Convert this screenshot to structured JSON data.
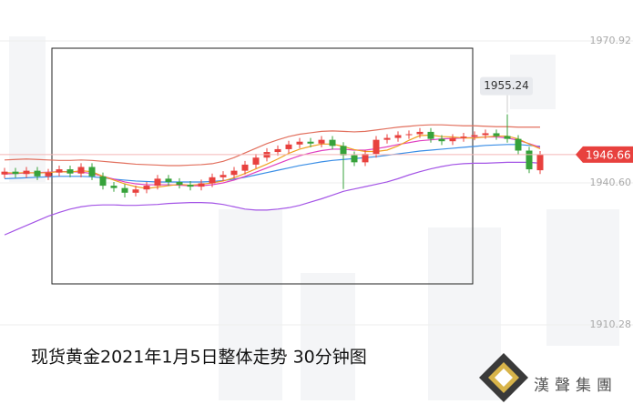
{
  "chart_data": {
    "type": "candlestick",
    "title": "现货黄金2021年1月5日整体走势  30分钟图",
    "brand": "漢聲集團",
    "ylim": [
      1893.38,
      1979.66
    ],
    "yticks": [
      1970.92,
      {
        "value": 1940.6,
        "label": "1940.60"
      },
      1910.28
    ],
    "grid": true,
    "up_color": "#e8413e",
    "down_color": "#36a23a",
    "open": [
      1942.4,
      1943.0,
      1942.5,
      1943.2,
      1942.0,
      1942.8,
      1943.5,
      1942.6,
      1944.0,
      1942.0,
      1940.0,
      1939.5,
      1938.5,
      1939.2,
      1940.0,
      1941.5,
      1940.8,
      1940.2,
      1939.8,
      1940.5,
      1941.8,
      1942.3,
      1943.2,
      1944.5,
      1946.0,
      1947.2,
      1947.8,
      1948.8,
      1949.4,
      1949.0,
      1949.8,
      1948.5,
      1946.5,
      1945.0,
      1946.8,
      1949.8,
      1950.2,
      1950.8,
      1951.0,
      1951.5,
      1950.0,
      1949.5,
      1950.2,
      1950.5,
      1950.8,
      1951.2,
      1950.6,
      1950.0,
      1947.5,
      1943.3
    ],
    "high": [
      1943.8,
      1943.8,
      1944.0,
      1944.0,
      1943.6,
      1944.3,
      1944.3,
      1944.8,
      1944.8,
      1942.8,
      1940.8,
      1940.3,
      1940.0,
      1940.8,
      1942.3,
      1942.3,
      1941.6,
      1941.0,
      1941.3,
      1942.6,
      1943.1,
      1944.0,
      1945.3,
      1946.8,
      1948.0,
      1948.6,
      1949.6,
      1950.2,
      1950.2,
      1950.6,
      1950.6,
      1949.3,
      1947.3,
      1947.6,
      1950.6,
      1951.0,
      1951.6,
      1951.8,
      1952.3,
      1952.3,
      1950.8,
      1951.0,
      1951.3,
      1951.6,
      1952.0,
      1952.0,
      1955.24,
      1950.8,
      1948.3,
      1947.4
    ],
    "low": [
      1941.6,
      1941.7,
      1941.7,
      1941.2,
      1941.2,
      1942.0,
      1941.8,
      1941.8,
      1941.2,
      1939.2,
      1938.7,
      1937.5,
      1937.7,
      1938.4,
      1939.2,
      1940.0,
      1939.4,
      1939.0,
      1939.0,
      1939.7,
      1941.0,
      1941.5,
      1942.4,
      1943.7,
      1945.2,
      1946.4,
      1947.0,
      1948.0,
      1948.2,
      1948.2,
      1947.7,
      1939.3,
      1944.2,
      1944.2,
      1946.0,
      1949.0,
      1949.4,
      1950.0,
      1950.2,
      1949.2,
      1948.7,
      1948.7,
      1949.4,
      1949.7,
      1950.0,
      1949.8,
      1949.2,
      1946.7,
      1942.7,
      1942.5
    ],
    "close": [
      1943.0,
      1942.5,
      1943.2,
      1942.0,
      1942.8,
      1943.5,
      1942.6,
      1944.0,
      1942.0,
      1940.0,
      1939.5,
      1938.5,
      1939.2,
      1940.0,
      1941.5,
      1940.8,
      1940.2,
      1939.8,
      1940.5,
      1941.8,
      1942.3,
      1943.2,
      1944.5,
      1946.0,
      1947.2,
      1947.8,
      1948.8,
      1949.4,
      1949.0,
      1949.8,
      1948.5,
      1946.5,
      1945.0,
      1946.8,
      1949.8,
      1950.2,
      1950.8,
      1951.0,
      1951.5,
      1950.0,
      1949.5,
      1950.2,
      1950.5,
      1950.8,
      1951.2,
      1950.6,
      1950.0,
      1947.5,
      1943.5,
      1946.66
    ],
    "series": [
      {
        "color": "#e2705e",
        "values": [
          1945.5,
          1945.6,
          1945.7,
          1945.6,
          1945.5,
          1945.4,
          1945.4,
          1945.5,
          1945.4,
          1945.2,
          1945.0,
          1944.8,
          1944.6,
          1944.5,
          1944.4,
          1944.3,
          1944.3,
          1944.4,
          1944.5,
          1944.7,
          1945.2,
          1946.0,
          1947.0,
          1948.0,
          1949.0,
          1949.8,
          1950.5,
          1951.0,
          1951.3,
          1951.6,
          1951.7,
          1951.6,
          1951.5,
          1951.6,
          1951.9,
          1952.2,
          1952.5,
          1952.7,
          1952.9,
          1953.0,
          1953.0,
          1952.9,
          1952.8,
          1952.8,
          1952.7,
          1952.6,
          1952.6,
          1952.5,
          1952.5,
          1952.5
        ]
      },
      {
        "color": "#a455e6",
        "values": [
          1929.5,
          1930.5,
          1931.5,
          1932.5,
          1933.5,
          1934.3,
          1935.0,
          1935.5,
          1935.8,
          1935.9,
          1935.9,
          1935.8,
          1935.8,
          1935.9,
          1936.0,
          1936.2,
          1936.3,
          1936.4,
          1936.4,
          1936.3,
          1936.0,
          1935.5,
          1935.0,
          1934.8,
          1934.8,
          1935.0,
          1935.3,
          1935.8,
          1936.5,
          1937.2,
          1938.0,
          1938.8,
          1939.3,
          1939.8,
          1940.3,
          1940.8,
          1941.5,
          1942.3,
          1943.0,
          1943.6,
          1944.1,
          1944.5,
          1944.7,
          1944.8,
          1944.8,
          1944.9,
          1945.0,
          1945.0,
          1945.0,
          1944.8
        ]
      },
      {
        "color": "#3a8ee6",
        "values": [
          1941.5,
          1941.6,
          1941.7,
          1941.8,
          1941.9,
          1942.0,
          1942.0,
          1942.0,
          1941.9,
          1941.7,
          1941.4,
          1941.2,
          1941.0,
          1940.9,
          1940.8,
          1940.8,
          1940.8,
          1940.8,
          1940.8,
          1940.9,
          1941.1,
          1941.4,
          1941.8,
          1942.3,
          1942.8,
          1943.3,
          1943.8,
          1944.3,
          1944.7,
          1945.1,
          1945.4,
          1945.6,
          1945.8,
          1946.0,
          1946.2,
          1946.5,
          1946.8,
          1947.1,
          1947.4,
          1947.6,
          1947.8,
          1948.0,
          1948.2,
          1948.4,
          1948.6,
          1948.7,
          1948.8,
          1948.8,
          1948.6,
          1948.4
        ]
      },
      {
        "color": "#e040c0",
        "values": [
          1942.5,
          1942.6,
          1942.7,
          1942.8,
          1942.9,
          1943.0,
          1943.0,
          1942.9,
          1942.6,
          1942.0,
          1941.4,
          1940.8,
          1940.4,
          1940.2,
          1940.2,
          1940.2,
          1940.1,
          1940.0,
          1940.0,
          1940.2,
          1940.6,
          1941.2,
          1942.0,
          1942.9,
          1943.8,
          1944.7,
          1945.6,
          1946.4,
          1947.0,
          1947.5,
          1947.8,
          1947.8,
          1947.6,
          1947.6,
          1947.9,
          1948.3,
          1948.8,
          1949.2,
          1949.6,
          1949.8,
          1950.0,
          1950.1,
          1950.2,
          1950.3,
          1950.4,
          1950.4,
          1950.2,
          1949.7,
          1949.0,
          1948.2
        ]
      },
      {
        "color": "#f0a020",
        "values": [
          1942.8,
          1942.7,
          1942.8,
          1942.7,
          1942.8,
          1943.0,
          1942.9,
          1943.2,
          1943.0,
          1942.0,
          1941.2,
          1940.4,
          1939.8,
          1939.4,
          1939.7,
          1940.0,
          1940.3,
          1940.1,
          1940.3,
          1940.6,
          1941.0,
          1941.7,
          1942.6,
          1943.6,
          1944.6,
          1945.7,
          1946.9,
          1947.8,
          1948.4,
          1948.9,
          1948.9,
          1948.4,
          1947.7,
          1947.3,
          1947.3,
          1947.6,
          1948.5,
          1949.7,
          1950.7,
          1950.8,
          1950.5,
          1950.4,
          1950.2,
          1950.2,
          1950.4,
          1950.6,
          1950.6,
          1950.0,
          1948.9,
          1947.9
        ]
      }
    ]
  }
}
